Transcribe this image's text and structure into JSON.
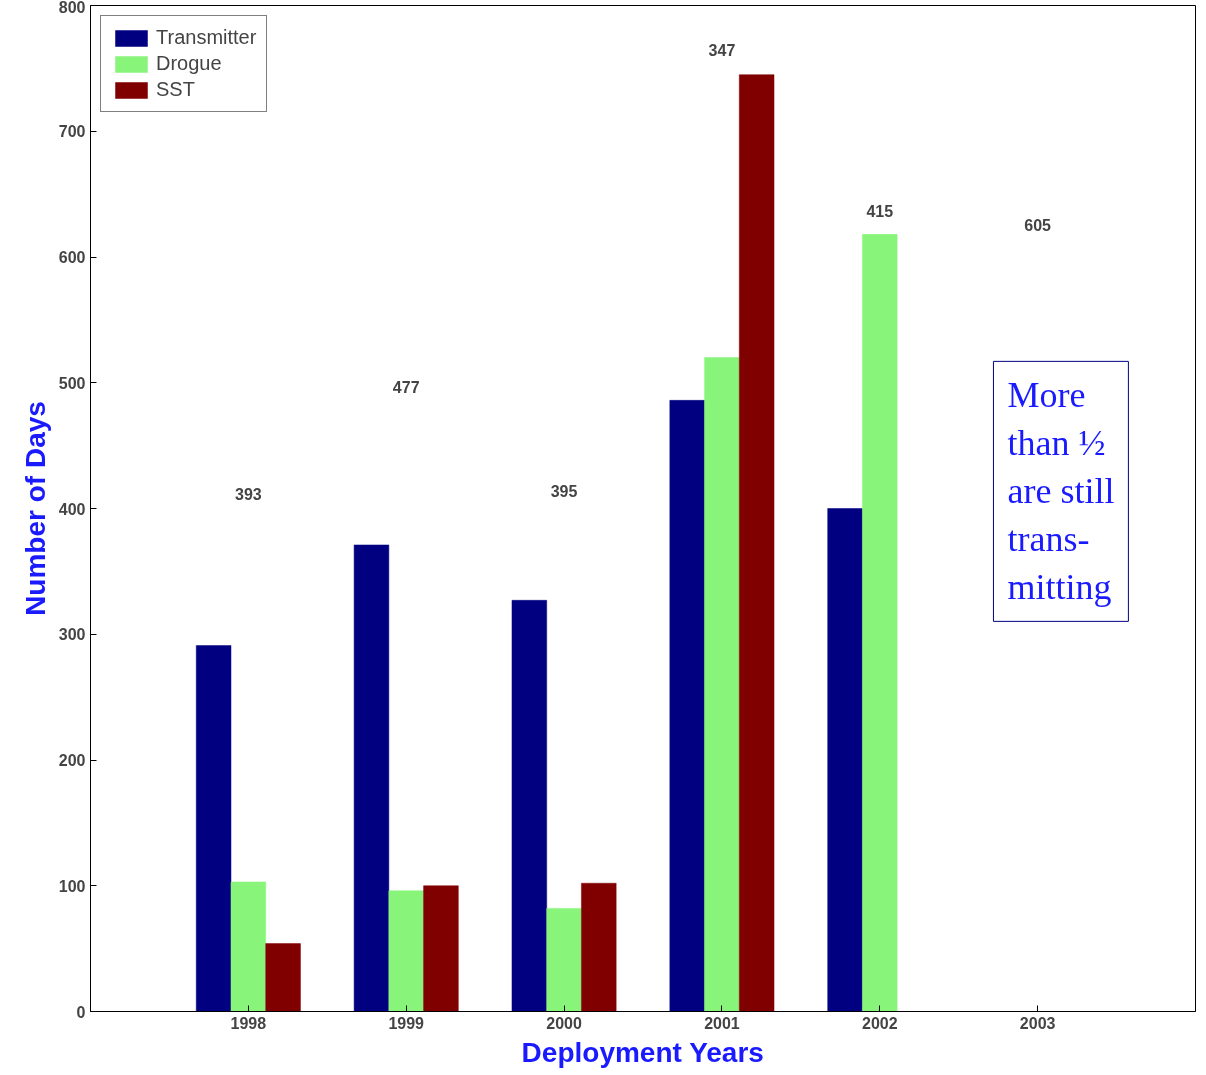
{
  "chart_data": {
    "type": "bar",
    "xlabel": "Deployment Years",
    "ylabel": "Number of Days",
    "categories": [
      "1998",
      "1999",
      "2000",
      "2001",
      "2002",
      "2003"
    ],
    "series": [
      {
        "name": "Transmitter",
        "color": "#000080",
        "values": [
          291,
          371,
          327,
          486,
          400,
          0
        ]
      },
      {
        "name": "Drogue",
        "color": "#88f57a",
        "values": [
          103,
          96,
          82,
          520,
          618,
          0
        ]
      },
      {
        "name": "SST",
        "color": "#800000",
        "values": [
          54,
          100,
          102,
          745,
          0,
          0
        ]
      }
    ],
    "ylim": [
      0,
      800
    ],
    "yticks": [
      0,
      100,
      200,
      300,
      400,
      500,
      600,
      700,
      800
    ],
    "grid": false,
    "legend": "top left",
    "annotations": [
      "393",
      "477",
      "395",
      "347",
      "415",
      "605",
      "More\nthan ½\nare still\ntrans-\nmitting"
    ]
  }
}
